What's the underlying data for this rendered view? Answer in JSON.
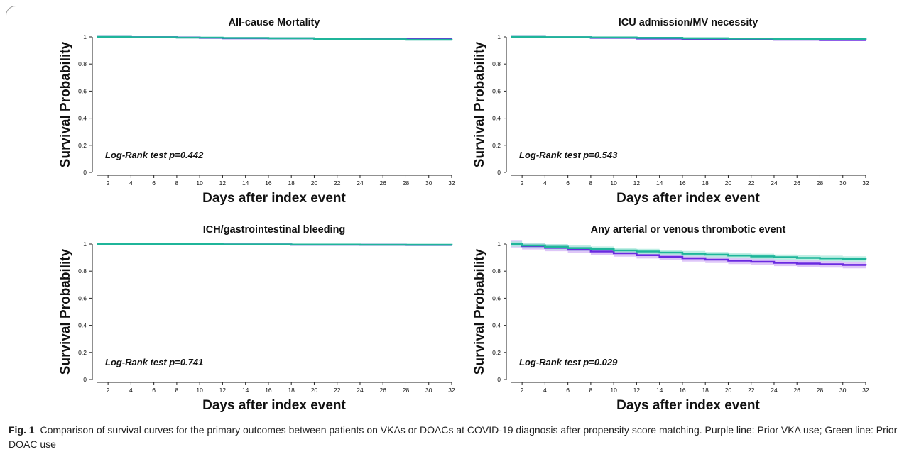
{
  "figure": {
    "label": "Fig. 1",
    "caption": "Comparison of survival curves for the primary outcomes between patients on VKAs or DOACs at COVID-19 diagnosis after propensity score matching. Purple line: Prior VKA use; Green line: Prior DOAC use"
  },
  "colors": {
    "vka": "#6a2ae0",
    "doac": "#1fb59a",
    "vka_band": "#d3b3f6",
    "doac_band": "#a9e9db",
    "axis": "#222222"
  },
  "chart_data": [
    {
      "type": "line",
      "title": "All-cause Mortality",
      "xlabel": "Days after index event",
      "ylabel": "Survival Probability",
      "annotation": "Log-Rank test p=0.442",
      "xlim": [
        1,
        32
      ],
      "ylim": [
        0,
        1
      ],
      "xticks": [
        2,
        4,
        6,
        8,
        10,
        12,
        14,
        16,
        18,
        20,
        22,
        24,
        26,
        28,
        30,
        32
      ],
      "yticks": [
        0,
        0.2,
        0.4,
        0.6,
        0.8,
        1
      ],
      "ytick_labels": [
        "0",
        "0.2",
        "0.4",
        "0.6",
        "0.8",
        "1"
      ],
      "series": [
        {
          "key": "vka",
          "x": [
            1,
            4,
            8,
            10,
            12,
            16,
            20,
            24,
            28,
            32
          ],
          "y": [
            1.0,
            0.998,
            0.996,
            0.993,
            0.99,
            0.989,
            0.988,
            0.987,
            0.986,
            0.986
          ],
          "band": 0.004
        },
        {
          "key": "doac",
          "x": [
            1,
            4,
            8,
            12,
            16,
            20,
            24,
            28,
            32
          ],
          "y": [
            1.0,
            0.997,
            0.995,
            0.992,
            0.99,
            0.986,
            0.982,
            0.979,
            0.977
          ],
          "band": 0.004
        }
      ]
    },
    {
      "type": "line",
      "title": "ICU admission/MV necessity",
      "xlabel": "Days after index event",
      "ylabel": "Survival Probability",
      "annotation": "Log-Rank test p=0.543",
      "xlim": [
        1,
        32
      ],
      "ylim": [
        0,
        1
      ],
      "xticks": [
        2,
        4,
        6,
        8,
        10,
        12,
        14,
        16,
        18,
        20,
        22,
        24,
        26,
        28,
        30,
        32
      ],
      "yticks": [
        0,
        0.2,
        0.4,
        0.6,
        0.8,
        1
      ],
      "ytick_labels": [
        "0",
        "0.2",
        "0.4",
        "0.6",
        "0.8",
        "1"
      ],
      "series": [
        {
          "key": "vka",
          "x": [
            1,
            4,
            8,
            12,
            16,
            20,
            24,
            28,
            32
          ],
          "y": [
            1.0,
            0.997,
            0.993,
            0.988,
            0.985,
            0.982,
            0.979,
            0.977,
            0.976
          ],
          "band": 0.005
        },
        {
          "key": "doac",
          "x": [
            1,
            4,
            8,
            12,
            16,
            20,
            24,
            28,
            32
          ],
          "y": [
            1.0,
            0.998,
            0.996,
            0.993,
            0.99,
            0.988,
            0.986,
            0.984,
            0.983
          ],
          "band": 0.004
        }
      ]
    },
    {
      "type": "line",
      "title": "ICH/gastrointestinal bleeding",
      "xlabel": "Days after index event",
      "ylabel": "Survival Probability",
      "annotation": "Log-Rank test p=0.741",
      "xlim": [
        1,
        32
      ],
      "ylim": [
        0,
        1
      ],
      "xticks": [
        2,
        4,
        6,
        8,
        10,
        12,
        14,
        16,
        18,
        20,
        22,
        24,
        26,
        28,
        30,
        32
      ],
      "yticks": [
        0,
        0.2,
        0.4,
        0.6,
        0.8,
        1
      ],
      "ytick_labels": [
        "0",
        "0.2",
        "0.4",
        "0.6",
        "0.8",
        "1"
      ],
      "series": [
        {
          "key": "vka",
          "x": [
            1,
            6,
            12,
            18,
            24,
            28,
            32
          ],
          "y": [
            1.0,
            0.999,
            0.997,
            0.995,
            0.994,
            0.993,
            0.993
          ],
          "band": 0.003
        },
        {
          "key": "doac",
          "x": [
            1,
            6,
            12,
            18,
            24,
            28,
            32
          ],
          "y": [
            1.0,
            0.999,
            0.997,
            0.996,
            0.995,
            0.994,
            0.993
          ],
          "band": 0.003
        }
      ]
    },
    {
      "type": "line",
      "title": "Any arterial or venous thrombotic event",
      "xlabel": "Days after index event",
      "ylabel": "Survival Probability",
      "annotation": "Log-Rank test p=0.029",
      "xlim": [
        1,
        32
      ],
      "ylim": [
        0,
        1
      ],
      "xticks": [
        2,
        4,
        6,
        8,
        10,
        12,
        14,
        16,
        18,
        20,
        22,
        24,
        26,
        28,
        30,
        32
      ],
      "yticks": [
        0,
        0.2,
        0.4,
        0.6,
        0.8,
        1
      ],
      "ytick_labels": [
        "0",
        "0.2",
        "0.4",
        "0.6",
        "0.8",
        "1"
      ],
      "series": [
        {
          "key": "vka",
          "x": [
            1,
            2,
            4,
            6,
            8,
            10,
            12,
            14,
            16,
            18,
            20,
            22,
            24,
            26,
            28,
            30,
            32
          ],
          "y": [
            1.0,
            0.985,
            0.972,
            0.958,
            0.945,
            0.932,
            0.918,
            0.905,
            0.895,
            0.885,
            0.877,
            0.869,
            0.862,
            0.856,
            0.851,
            0.846,
            0.842
          ],
          "band": 0.025
        },
        {
          "key": "doac",
          "x": [
            1,
            2,
            4,
            6,
            8,
            10,
            12,
            14,
            16,
            18,
            20,
            22,
            24,
            26,
            28,
            30,
            32
          ],
          "y": [
            1.0,
            0.99,
            0.98,
            0.97,
            0.962,
            0.953,
            0.945,
            0.937,
            0.929,
            0.922,
            0.915,
            0.909,
            0.903,
            0.898,
            0.894,
            0.89,
            0.887
          ],
          "band": 0.02
        }
      ]
    }
  ]
}
